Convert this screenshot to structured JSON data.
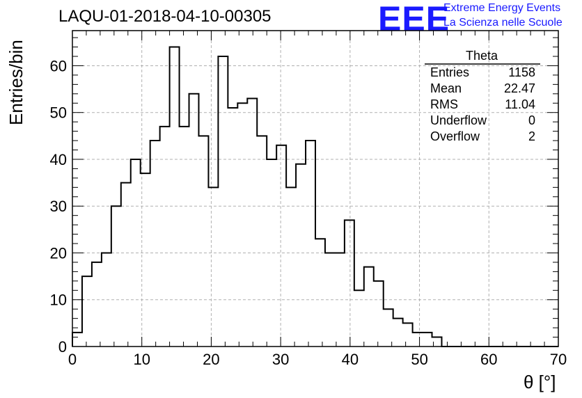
{
  "header": {
    "title": "LAQU-01-2018-04-10-00305",
    "logo_text": "EEE",
    "org_line1": "Extreme Energy Events",
    "org_line2": "La Scienza nelle Scuole"
  },
  "colors": {
    "logo": "#1a1aff",
    "histogram": "#000000",
    "grid": "#b0b0b0"
  },
  "stats_box": {
    "name": "Theta",
    "rows": [
      {
        "label": "Entries",
        "value": "1158"
      },
      {
        "label": "Mean",
        "value": "22.47"
      },
      {
        "label": "RMS",
        "value": "11.04"
      },
      {
        "label": "Underflow",
        "value": "0"
      },
      {
        "label": "Overflow",
        "value": "2"
      }
    ]
  },
  "chart_data": {
    "type": "histogram",
    "title": "LAQU-01-2018-04-10-00305",
    "xlabel": "θ [°]",
    "ylabel": "Entries/bin",
    "xlim": [
      0,
      70
    ],
    "ylim": [
      0,
      67.5
    ],
    "grid": true,
    "bin_width": 1.4,
    "bin_edges_start": 0,
    "values": [
      3,
      15,
      18,
      20,
      30,
      35,
      40,
      37,
      44,
      47,
      64,
      47,
      54,
      45,
      34,
      62,
      51,
      52,
      53,
      45,
      40,
      43,
      34,
      39,
      44,
      23,
      20,
      20,
      27,
      12,
      17,
      14,
      8,
      6,
      5,
      3,
      3,
      2,
      0,
      0,
      0,
      0,
      0,
      0,
      0,
      0,
      0,
      0,
      0,
      0
    ],
    "x_ticks": [
      0,
      10,
      20,
      30,
      40,
      50,
      60,
      70
    ],
    "y_ticks": [
      0,
      10,
      20,
      30,
      40,
      50,
      60
    ]
  }
}
